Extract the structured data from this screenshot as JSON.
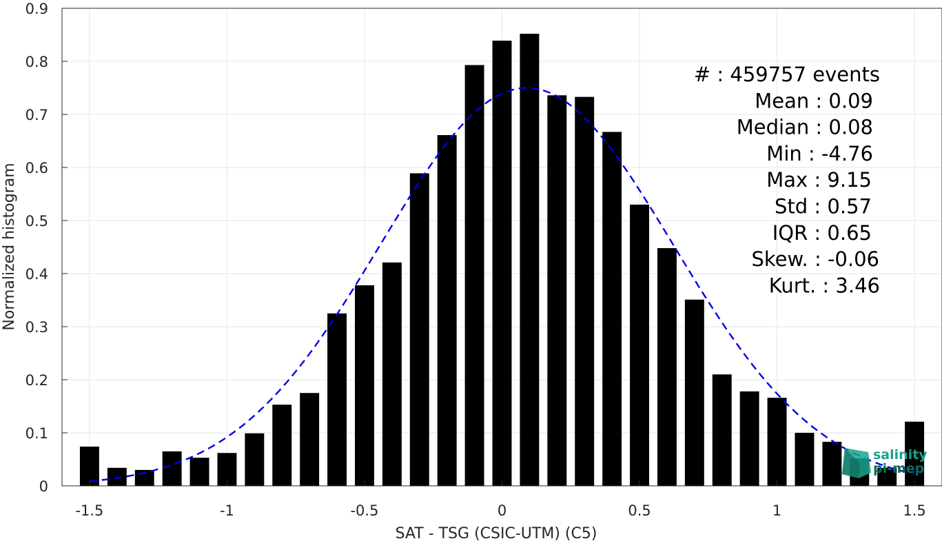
{
  "chart_data": {
    "type": "bar",
    "xlabel": "SAT - TSG (CSIC-UTM) (C5)",
    "ylabel": "Normalized histogram",
    "xlim": [
      -1.6,
      1.6
    ],
    "ylim": [
      0,
      0.9
    ],
    "grid": true,
    "x_ticks": [
      "-1.5",
      "-1",
      "-0.5",
      "0",
      "0.5",
      "1",
      "1.5"
    ],
    "y_ticks": [
      "0",
      "0.1",
      "0.2",
      "0.3",
      "0.4",
      "0.5",
      "0.6",
      "0.7",
      "0.8",
      "0.9"
    ],
    "bin_width": 0.1,
    "bar_width_fraction": 0.7,
    "bars": [
      {
        "x": -1.5,
        "y": 0.074
      },
      {
        "x": -1.4,
        "y": 0.034
      },
      {
        "x": -1.3,
        "y": 0.03
      },
      {
        "x": -1.2,
        "y": 0.065
      },
      {
        "x": -1.1,
        "y": 0.053
      },
      {
        "x": -1.0,
        "y": 0.062
      },
      {
        "x": -0.9,
        "y": 0.099
      },
      {
        "x": -0.8,
        "y": 0.153
      },
      {
        "x": -0.7,
        "y": 0.175
      },
      {
        "x": -0.6,
        "y": 0.325
      },
      {
        "x": -0.5,
        "y": 0.378
      },
      {
        "x": -0.4,
        "y": 0.421
      },
      {
        "x": -0.3,
        "y": 0.589
      },
      {
        "x": -0.2,
        "y": 0.661
      },
      {
        "x": -0.1,
        "y": 0.793
      },
      {
        "x": 0.0,
        "y": 0.839
      },
      {
        "x": 0.1,
        "y": 0.852
      },
      {
        "x": 0.2,
        "y": 0.736
      },
      {
        "x": 0.3,
        "y": 0.733
      },
      {
        "x": 0.4,
        "y": 0.667
      },
      {
        "x": 0.5,
        "y": 0.53
      },
      {
        "x": 0.6,
        "y": 0.448
      },
      {
        "x": 0.7,
        "y": 0.351
      },
      {
        "x": 0.8,
        "y": 0.21
      },
      {
        "x": 0.9,
        "y": 0.178
      },
      {
        "x": 1.0,
        "y": 0.166
      },
      {
        "x": 1.1,
        "y": 0.1
      },
      {
        "x": 1.2,
        "y": 0.083
      },
      {
        "x": 1.3,
        "y": 0.052
      },
      {
        "x": 1.4,
        "y": 0.034
      },
      {
        "x": 1.5,
        "y": 0.121
      }
    ],
    "fit_curve": {
      "style": "dashed",
      "color": "#0000e6",
      "mean": 0.09,
      "std": 0.532,
      "peak": 0.75,
      "x_range": [
        -1.5,
        1.5
      ]
    },
    "stats_lines": [
      "#  : 459757 events",
      "Mean : 0.09",
      "Median : 0.08",
      "Min : -4.76",
      "Max : 9.15",
      "Std : 0.57",
      "IQR : 0.65",
      "Skew. : -0.06",
      "Kurt. : 3.46"
    ]
  },
  "logo": {
    "line1": "salinity",
    "line2": "pi-mep",
    "color_primary": "#1aa38c",
    "color_secondary": "#0d6b5c"
  },
  "colors": {
    "bar": "#000000",
    "grid": "#e6e6e6",
    "axis": "#262626"
  }
}
